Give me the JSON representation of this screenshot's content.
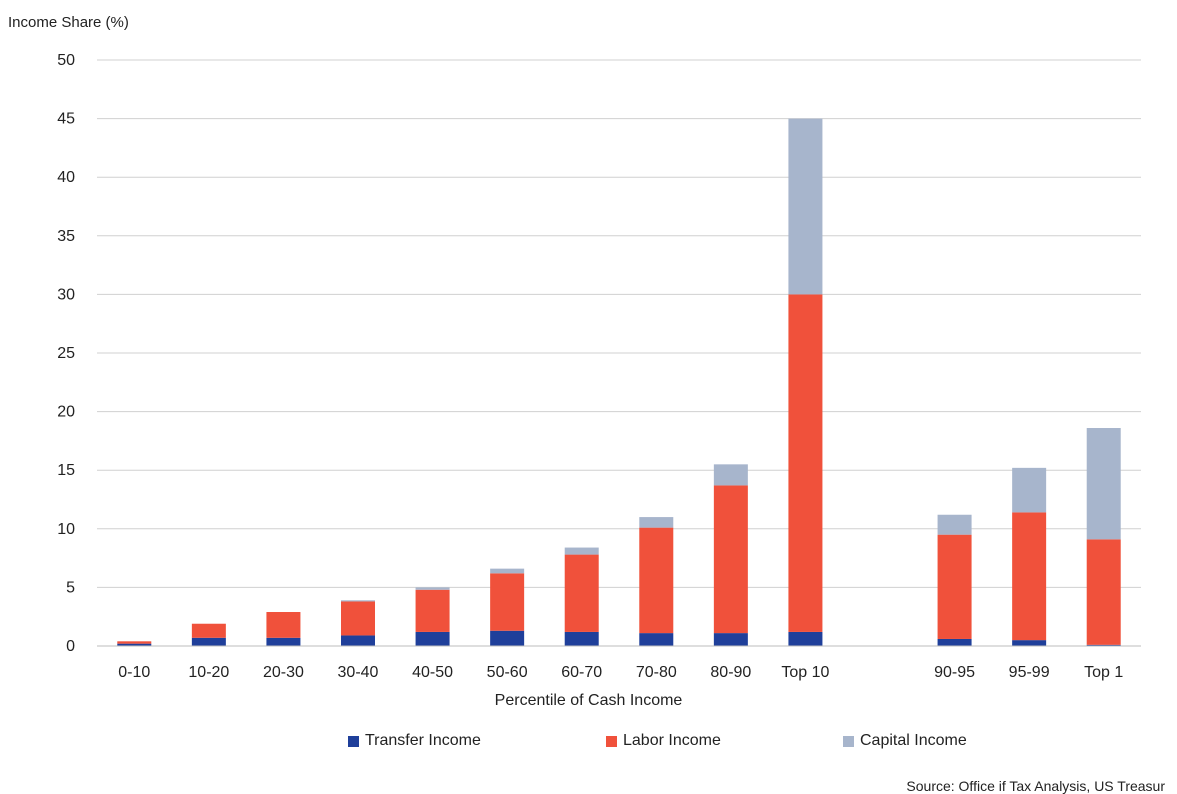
{
  "chart_data": {
    "type": "bar",
    "stacked": true,
    "ylabel": "Income Share (%)",
    "xlabel": "Percentile of Cash Income",
    "ylim": [
      0,
      50
    ],
    "yticks": [
      0,
      5,
      10,
      15,
      20,
      25,
      30,
      35,
      40,
      45,
      50
    ],
    "grid": true,
    "legend_position": "bottom",
    "categories": [
      "0-10",
      "10-20",
      "20-30",
      "30-40",
      "40-50",
      "50-60",
      "60-70",
      "70-80",
      "80-90",
      "Top 10",
      "",
      "90-95",
      "95-99",
      "Top 1"
    ],
    "series": [
      {
        "name": "Transfer Income",
        "color": "#1f3f9a",
        "values": [
          0.2,
          0.7,
          0.7,
          0.9,
          1.2,
          1.3,
          1.2,
          1.1,
          1.1,
          1.2,
          null,
          0.6,
          0.5,
          0.1
        ]
      },
      {
        "name": "Labor Income",
        "color": "#f0513b",
        "values": [
          0.2,
          1.2,
          2.2,
          2.9,
          3.6,
          4.9,
          6.6,
          9.0,
          12.6,
          28.8,
          null,
          8.9,
          10.9,
          9.0
        ]
      },
      {
        "name": "Capital Income",
        "color": "#a7b5cc",
        "values": [
          0.0,
          0.0,
          0.0,
          0.1,
          0.2,
          0.4,
          0.6,
          0.9,
          1.8,
          15.0,
          null,
          1.7,
          3.8,
          9.5
        ]
      }
    ]
  },
  "source": "Source: Office if Tax Analysis, US Treasur"
}
